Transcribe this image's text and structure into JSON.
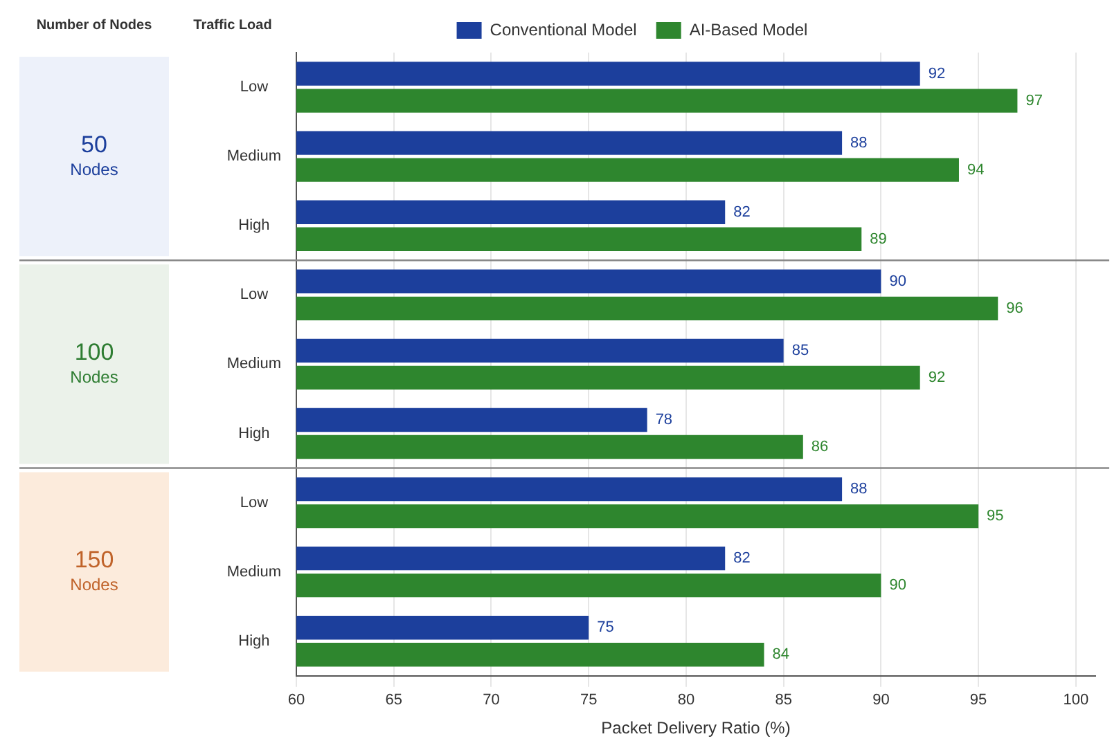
{
  "chart_data": {
    "type": "bar",
    "orientation": "horizontal",
    "xlabel": "Packet Delivery Ratio (%)",
    "categories": [
      "Low",
      "Medium",
      "High",
      "Low",
      "Medium",
      "High",
      "Low",
      "Medium",
      "High"
    ],
    "series": [
      {
        "name": "Conventional Model",
        "color": "#1c3f9c",
        "values": [
          92,
          88,
          82,
          90,
          85,
          78,
          88,
          82,
          75
        ]
      },
      {
        "name": "AI-Based Model",
        "color": "#2e862e",
        "values": [
          97,
          94,
          89,
          96,
          92,
          86,
          95,
          90,
          84
        ]
      }
    ],
    "xlim": [
      60,
      101
    ],
    "xticks": [
      60,
      65,
      70,
      75,
      80,
      85,
      90,
      95,
      100
    ],
    "grid": "x",
    "legend": "top",
    "data_labels": true,
    "annotations": [
      "Number of Nodes",
      "Traffic Load",
      "50 Nodes",
      "100 Nodes",
      "150 Nodes"
    ]
  }
}
